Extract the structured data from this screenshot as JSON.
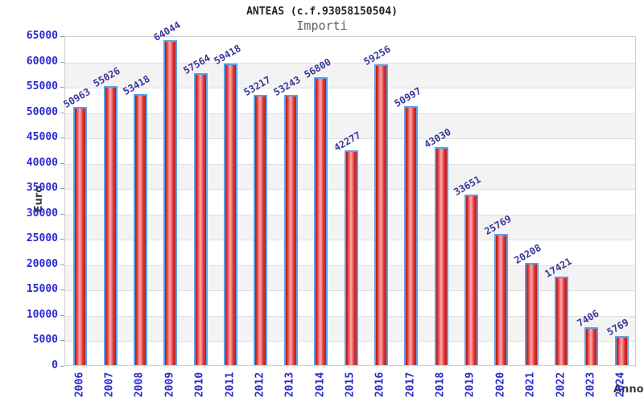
{
  "chart_data": {
    "type": "bar",
    "title": "ANTEAS (c.f.93058150504)",
    "subtitle": "Importi",
    "xlabel": "Anno",
    "ylabel": "Euro",
    "categories": [
      "2006",
      "2007",
      "2008",
      "2009",
      "2010",
      "2011",
      "2012",
      "2013",
      "2014",
      "2015",
      "2016",
      "2017",
      "2018",
      "2019",
      "2020",
      "2021",
      "2022",
      "2023",
      "2024"
    ],
    "values": [
      50963,
      55026,
      53418,
      64044,
      57564,
      59418,
      53217,
      53243,
      56800,
      42277,
      59256,
      50997,
      43030,
      33651,
      25769,
      20208,
      17421,
      7406,
      5769
    ],
    "ylim": [
      0,
      65000
    ],
    "ytick_step": 5000,
    "yticks": [
      0,
      5000,
      10000,
      15000,
      20000,
      25000,
      30000,
      35000,
      40000,
      45000,
      50000,
      55000,
      60000,
      65000
    ],
    "grid": "horizontal gridlines every 5000 with alternating gray bands",
    "legend": "none",
    "colors": {
      "bar_fill_dark": "#b51d1d",
      "bar_fill_light": "#ffadad",
      "bar_border": "#5b9fe8",
      "value_label": "#38389b",
      "axis_tick_label": "#2a2ad0",
      "axis_title": "#3c3c3c",
      "band": "#f3f3f3",
      "gridline": "#e0e0e0",
      "title": "#222222",
      "subtitle": "#5f5f5f"
    }
  }
}
